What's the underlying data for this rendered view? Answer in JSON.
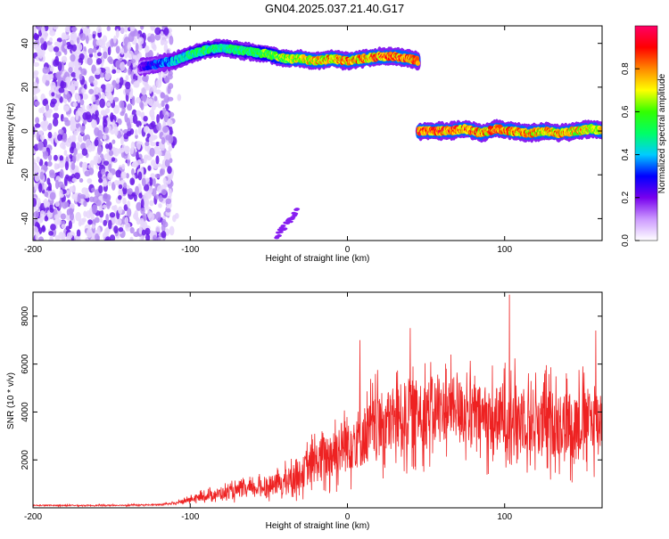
{
  "title": "GN04.2025.037.21.40.G17",
  "colors": {
    "snr_line": "#ee2222",
    "low_freq_scatter": "#6a1ae8",
    "axis": "#000000"
  },
  "chart_data": [
    {
      "type": "heatmap",
      "name": "spectrogram",
      "xlabel": "Height of straight line (km)",
      "ylabel": "Frequency (Hz)",
      "xlim": [
        -200,
        162
      ],
      "ylim": [
        -50,
        48
      ],
      "xticks": [
        -200,
        -100,
        0,
        100
      ],
      "xtick_labels": [
        "-200",
        "-100",
        "0",
        "100"
      ],
      "yticks": [
        -40,
        -20,
        0,
        20,
        40
      ],
      "ytick_labels": [
        "-40",
        "-20",
        "0",
        "20",
        "40"
      ],
      "colorbar": {
        "label": "Normalized spectral amplitude",
        "range": [
          0,
          1
        ],
        "ticks": [
          0.0,
          0.2,
          0.4,
          0.6,
          0.8
        ],
        "tick_labels": [
          "0.0",
          "0.2",
          "0.4",
          "0.6",
          "0.8"
        ],
        "stops": [
          "#ffffff",
          "#cc99ff",
          "#7700ee",
          "#0000ff",
          "#00ccff",
          "#00ff66",
          "#33ff00",
          "#ffff00",
          "#ff8800",
          "#ff0000",
          "#ff0066"
        ]
      },
      "noise_region": {
        "x_range": [
          -200,
          -112
        ],
        "y_range": [
          -50,
          48
        ]
      },
      "tracks": [
        {
          "name": "upper-track",
          "x": [
            -132,
            -125,
            -118,
            -110,
            -100,
            -90,
            -80,
            -70,
            -60,
            -50,
            -40,
            -30,
            -20,
            -10,
            0,
            10,
            20,
            30,
            40,
            45
          ],
          "freq": [
            29,
            30,
            31,
            32,
            35,
            37,
            38,
            37,
            36,
            35,
            33,
            33,
            32,
            33,
            32,
            33,
            34,
            34,
            33,
            32
          ],
          "amplitude": [
            0.2,
            0.3,
            0.35,
            0.4,
            0.5,
            0.55,
            0.5,
            0.5,
            0.55,
            0.6,
            0.65,
            0.7,
            0.75,
            0.8,
            0.8,
            0.8,
            0.85,
            0.85,
            0.85,
            0.8
          ]
        },
        {
          "name": "lower-track",
          "x": [
            45,
            55,
            65,
            75,
            85,
            95,
            105,
            115,
            125,
            135,
            145,
            155,
            162
          ],
          "freq": [
            0,
            0,
            0,
            1,
            -1,
            1,
            0,
            -1,
            0,
            -1,
            0,
            1,
            0
          ],
          "amplitude": [
            0.9,
            0.9,
            0.85,
            0.85,
            0.8,
            0.85,
            0.8,
            0.8,
            0.75,
            0.8,
            0.75,
            0.7,
            0.7
          ]
        },
        {
          "name": "faint-track",
          "x": [
            -45,
            -38,
            -32
          ],
          "freq": [
            -48,
            -42,
            -36
          ],
          "amplitude": [
            0.15,
            0.15,
            0.15
          ]
        }
      ]
    },
    {
      "type": "line",
      "name": "snr",
      "xlabel": "Height of straight line (km)",
      "ylabel": "SNR (10 * v/v)",
      "xlim": [
        -200,
        162
      ],
      "ylim": [
        0,
        9000
      ],
      "xticks": [
        -200,
        -100,
        0,
        100
      ],
      "xtick_labels": [
        "-200",
        "-100",
        "0",
        "100"
      ],
      "yticks": [
        2000,
        4000,
        6000,
        8000
      ],
      "ytick_labels": [
        "2000",
        "4000",
        "6000",
        "8000"
      ],
      "series": [
        {
          "name": "SNR",
          "x": [
            -200,
            -180,
            -160,
            -140,
            -120,
            -110,
            -100,
            -90,
            -80,
            -70,
            -60,
            -50,
            -40,
            -30,
            -20,
            -10,
            0,
            10,
            20,
            30,
            40,
            50,
            60,
            70,
            80,
            90,
            100,
            110,
            120,
            130,
            140,
            150,
            162
          ],
          "values": [
            100,
            100,
            100,
            110,
            130,
            180,
            350,
            500,
            600,
            700,
            800,
            900,
            1100,
            1400,
            1900,
            2300,
            2700,
            3000,
            3400,
            3700,
            3900,
            4000,
            4100,
            4200,
            3900,
            3700,
            3700,
            3800,
            3600,
            3500,
            3500,
            3600,
            3700
          ],
          "spread": [
            40,
            40,
            40,
            40,
            50,
            80,
            200,
            300,
            400,
            450,
            500,
            600,
            800,
            1000,
            1400,
            1700,
            2000,
            2100,
            2200,
            2300,
            2400,
            2300,
            2200,
            2100,
            2100,
            2200,
            2300,
            2300,
            2300,
            2300,
            2300,
            2300,
            2200
          ],
          "peaks": [
            {
              "x": 103,
              "y": 8900
            },
            {
              "x": 40,
              "y": 7500
            },
            {
              "x": 158,
              "y": 7400
            },
            {
              "x": 8,
              "y": 7000
            }
          ]
        }
      ]
    }
  ]
}
